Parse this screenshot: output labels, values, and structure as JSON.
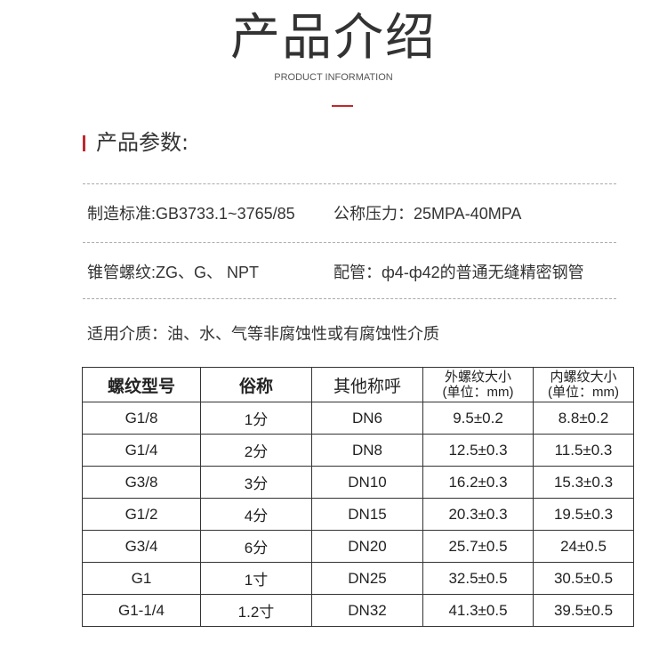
{
  "header": {
    "title": "产品介绍",
    "subtitle": "PRODUCT INFORMATION"
  },
  "section": {
    "title": "产品参数:"
  },
  "params": [
    {
      "text": "制造标准:GB3733.1~3765/85"
    },
    {
      "text": "公称压力：25MPA-40MPA"
    },
    {
      "text": "锥管螺纹:ZG、G、 NPT"
    },
    {
      "text": "配管：ф4-ф42的普通无缝精密钢管"
    },
    {
      "text": "适用介质：油、水、气等非腐蚀性或有腐蚀性介质"
    }
  ],
  "table": {
    "headers": [
      "螺纹型号",
      "俗称",
      "其他称呼",
      "外螺纹大小",
      "(单位：mm)",
      "内螺纹大小",
      "(单位：mm)"
    ],
    "rows": [
      [
        "G1/8",
        "1分",
        "DN6",
        "9.5±0.2",
        "8.8±0.2"
      ],
      [
        "G1/4",
        "2分",
        "DN8",
        "12.5±0.3",
        "11.5±0.3"
      ],
      [
        "G3/8",
        "3分",
        "DN10",
        "16.2±0.3",
        "15.3±0.3"
      ],
      [
        "G1/2",
        "4分",
        "DN15",
        "20.3±0.3",
        "19.5±0.3"
      ],
      [
        "G3/4",
        "6分",
        "DN20",
        "25.7±0.5",
        "24±0.5"
      ],
      [
        "G1",
        "1寸",
        "DN25",
        "32.5±0.5",
        "30.5±0.5"
      ],
      [
        "G1-1/4",
        "1.2寸",
        "DN32",
        "41.3±0.5",
        "39.5±0.5"
      ]
    ]
  },
  "colors": {
    "accent": "#c0282e"
  }
}
